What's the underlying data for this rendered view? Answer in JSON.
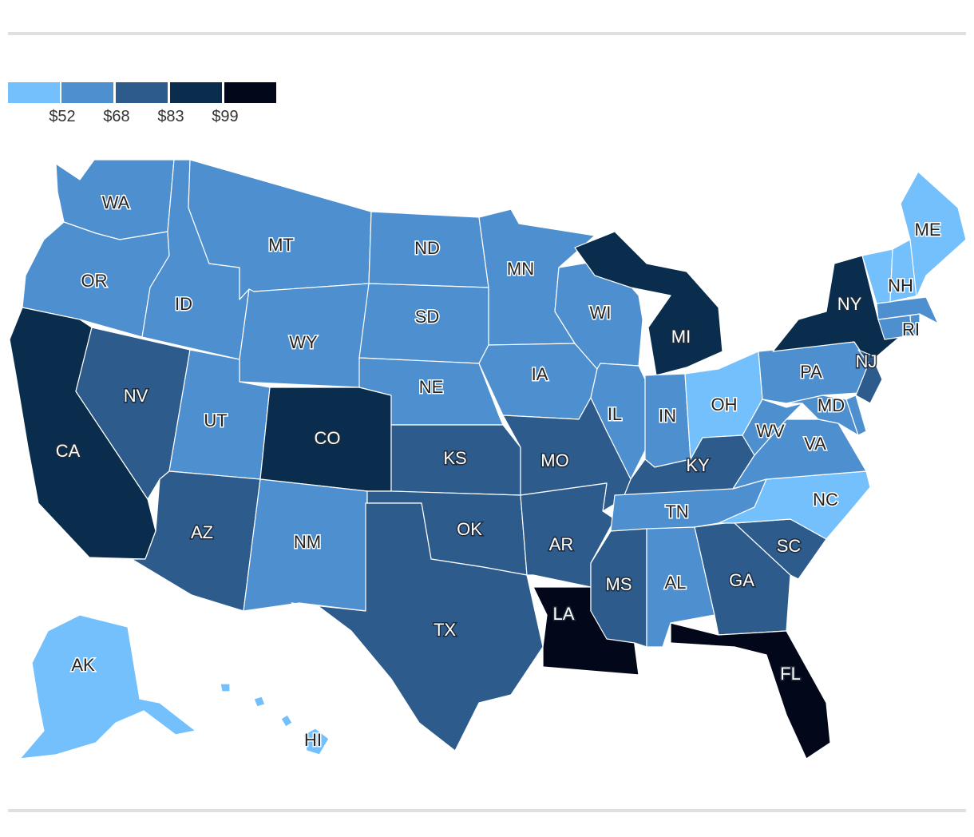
{
  "legend": {
    "colors": [
      "#74c0fc",
      "#4e8fd0",
      "#2c5b8c",
      "#0b2d4d",
      "#03071a"
    ],
    "ticks": [
      "$52",
      "$68",
      "$83",
      "$99"
    ]
  },
  "states": [
    {
      "abbr": "WA",
      "tier": 1
    },
    {
      "abbr": "OR",
      "tier": 1
    },
    {
      "abbr": "CA",
      "tier": 3
    },
    {
      "abbr": "ID",
      "tier": 1
    },
    {
      "abbr": "NV",
      "tier": 2
    },
    {
      "abbr": "MT",
      "tier": 1
    },
    {
      "abbr": "WY",
      "tier": 1
    },
    {
      "abbr": "UT",
      "tier": 1
    },
    {
      "abbr": "AZ",
      "tier": 2
    },
    {
      "abbr": "CO",
      "tier": 3
    },
    {
      "abbr": "NM",
      "tier": 1
    },
    {
      "abbr": "ND",
      "tier": 1
    },
    {
      "abbr": "SD",
      "tier": 1
    },
    {
      "abbr": "NE",
      "tier": 1
    },
    {
      "abbr": "KS",
      "tier": 2
    },
    {
      "abbr": "OK",
      "tier": 2
    },
    {
      "abbr": "TX",
      "tier": 2
    },
    {
      "abbr": "MN",
      "tier": 1
    },
    {
      "abbr": "IA",
      "tier": 1
    },
    {
      "abbr": "MO",
      "tier": 2
    },
    {
      "abbr": "AR",
      "tier": 2
    },
    {
      "abbr": "LA",
      "tier": 4
    },
    {
      "abbr": "WI",
      "tier": 1
    },
    {
      "abbr": "IL",
      "tier": 1
    },
    {
      "abbr": "MI",
      "tier": 3
    },
    {
      "abbr": "IN",
      "tier": 1
    },
    {
      "abbr": "OH",
      "tier": 0
    },
    {
      "abbr": "KY",
      "tier": 2
    },
    {
      "abbr": "TN",
      "tier": 1
    },
    {
      "abbr": "MS",
      "tier": 2
    },
    {
      "abbr": "AL",
      "tier": 1
    },
    {
      "abbr": "GA",
      "tier": 2
    },
    {
      "abbr": "FL",
      "tier": 4
    },
    {
      "abbr": "SC",
      "tier": 2
    },
    {
      "abbr": "NC",
      "tier": 0
    },
    {
      "abbr": "VA",
      "tier": 1
    },
    {
      "abbr": "WV",
      "tier": 1
    },
    {
      "abbr": "MD",
      "tier": 1
    },
    {
      "abbr": "PA",
      "tier": 1
    },
    {
      "abbr": "NY",
      "tier": 3
    },
    {
      "abbr": "NJ",
      "tier": 2
    },
    {
      "abbr": "NH",
      "tier": 0
    },
    {
      "abbr": "ME",
      "tier": 0
    },
    {
      "abbr": "RI",
      "tier": 1
    },
    {
      "abbr": "AK",
      "tier": 0
    },
    {
      "abbr": "HI",
      "tier": 0
    }
  ],
  "unlabeled_states": [
    {
      "abbr": "VT",
      "tier": 0
    },
    {
      "abbr": "MA",
      "tier": 1
    },
    {
      "abbr": "CT",
      "tier": 1
    },
    {
      "abbr": "DE",
      "tier": 1
    }
  ]
}
